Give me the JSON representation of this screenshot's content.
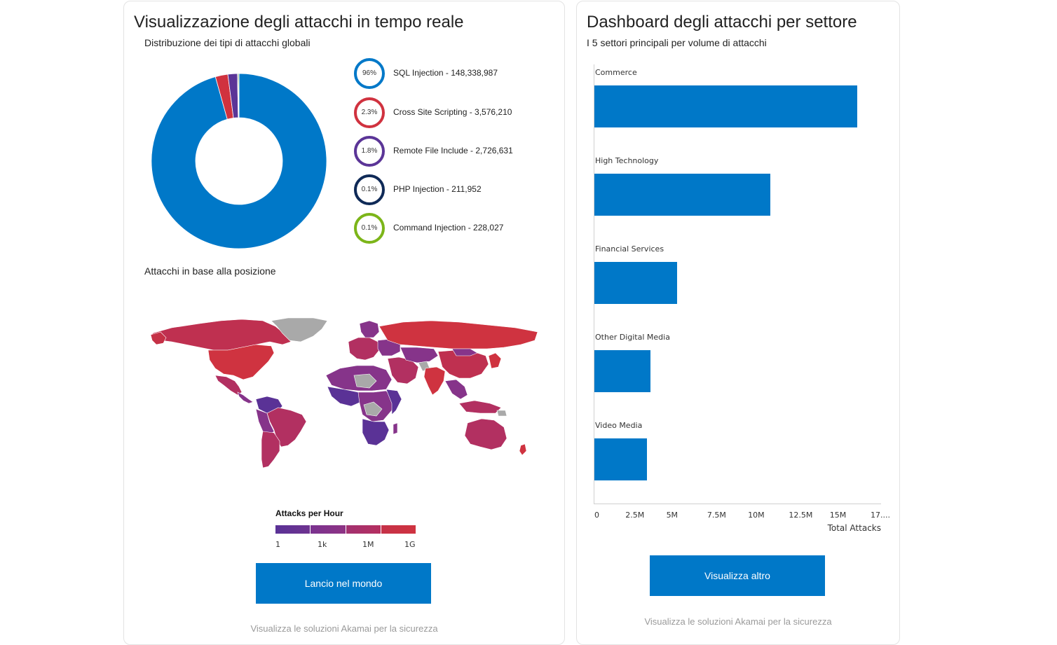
{
  "left_panel": {
    "title": "Visualizzazione degli attacchi in tempo reale",
    "donut_subtitle": "Distribuzione dei tipi di attacchi globali",
    "attack_types": [
      {
        "name": "SQL Injection - 148,338,987",
        "percent": "96%",
        "color": "#0078c8",
        "value": 148338987
      },
      {
        "name": "Cross Site Scripting - 3,576,210",
        "percent": "2.3%",
        "color": "#d0323f",
        "value": 3576210
      },
      {
        "name": "Remote File Include - 2,726,631",
        "percent": "1.8%",
        "color": "#5b3597",
        "value": 2726631
      },
      {
        "name": "PHP Injection - 211,952",
        "percent": "0.1%",
        "color": "#0f2a57",
        "value": 211952
      },
      {
        "name": "Command Injection - 228,027",
        "percent": "0.1%",
        "color": "#7cb519",
        "value": 228027
      }
    ],
    "map_subtitle": "Attacchi in base alla posizione",
    "map_legend": {
      "title": "Attacks per Hour",
      "labels": [
        "1",
        "1k",
        "1M",
        "1G"
      ],
      "colors": [
        "#5a3296",
        "#86348a",
        "#b23061",
        "#cf3340"
      ]
    },
    "launch_button": "Lancio nel mondo",
    "footer_link": "Visualizza le soluzioni Akamai per la sicurezza"
  },
  "right_panel": {
    "title": "Dashboard degli attacchi per settore",
    "subtitle": "I 5 settori principali per volume di attacchi",
    "chart_data": {
      "type": "bar",
      "orientation": "horizontal",
      "categories": [
        "Commerce",
        "High Technology",
        "Financial Services",
        "Other Digital Media",
        "Video Media"
      ],
      "values": [
        16100000,
        10780000,
        5080000,
        3420000,
        3200000
      ],
      "xlabel": "Total Attacks",
      "xlim": [
        0,
        17500000
      ],
      "ticks": [
        "0",
        "2.5M",
        "5M",
        "7.5M",
        "10M",
        "12.5M",
        "15M",
        "17...."
      ],
      "tick_values": [
        0,
        2500000,
        5000000,
        7500000,
        10000000,
        12500000,
        15000000,
        17500000
      ],
      "color": "#0078c8"
    },
    "more_button": "Visualizza altro",
    "footer_link": "Visualizza le soluzioni Akamai per la sicurezza"
  }
}
